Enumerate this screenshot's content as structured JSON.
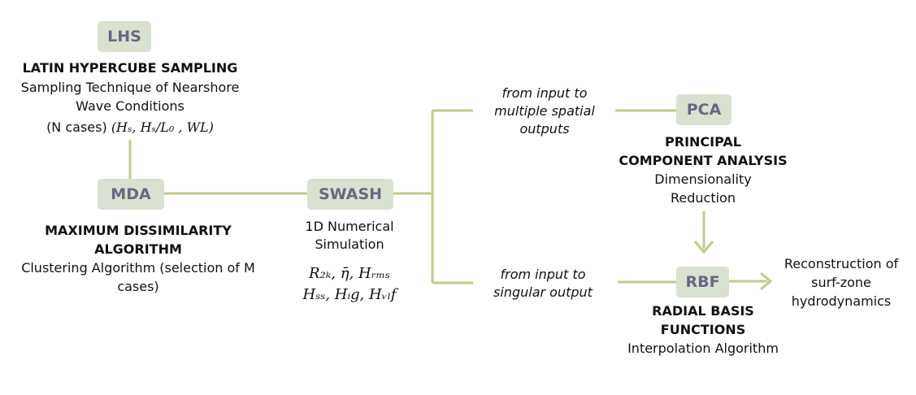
{
  "nodes": {
    "lhs": {
      "label": "LHS"
    },
    "mda": {
      "label": "MDA"
    },
    "swash": {
      "label": "SWASH"
    },
    "pca": {
      "label": "PCA"
    },
    "rbf": {
      "label": "RBF"
    }
  },
  "lhs": {
    "title": "LATIN HYPERCUBE SAMPLING",
    "desc1": "Sampling Technique of Nearshore",
    "desc2": "Wave Conditions",
    "params_cases": "(N cases)",
    "params_vars": "(Hₛ, Hₛ/L₀ , WL)"
  },
  "mda": {
    "title1": "MAXIMUM DISSIMILARITY",
    "title2": "ALGORITHM",
    "desc1": "Clustering Algorithm (selection of M",
    "desc2": "cases)"
  },
  "swash": {
    "desc1": "1D Numerical",
    "desc2": "Simulation",
    "out1": "R₂ₖ, η̄, Hᵣₘₛ",
    "out2": "Hₛₛ, Hᵢg, Hᵥₗf"
  },
  "branch_top": {
    "l1": "from input to",
    "l2": "multiple spatial",
    "l3": "outputs"
  },
  "branch_bottom": {
    "l1": "from input to",
    "l2": "singular output"
  },
  "pca": {
    "title1": "PRINCIPAL",
    "title2": "COMPONENT ANALYSIS",
    "desc1": "Dimensionality",
    "desc2": "Reduction"
  },
  "rbf": {
    "title1": "RADIAL BASIS",
    "title2": "FUNCTIONS",
    "desc": "Interpolation Algorithm"
  },
  "result": {
    "l1": "Reconstruction of",
    "l2": "surf-zone",
    "l3": "hydrodynamics"
  },
  "colors": {
    "node_fill": "#d9e2d0",
    "node_text": "#6b6684",
    "line": "#c5c98a"
  }
}
